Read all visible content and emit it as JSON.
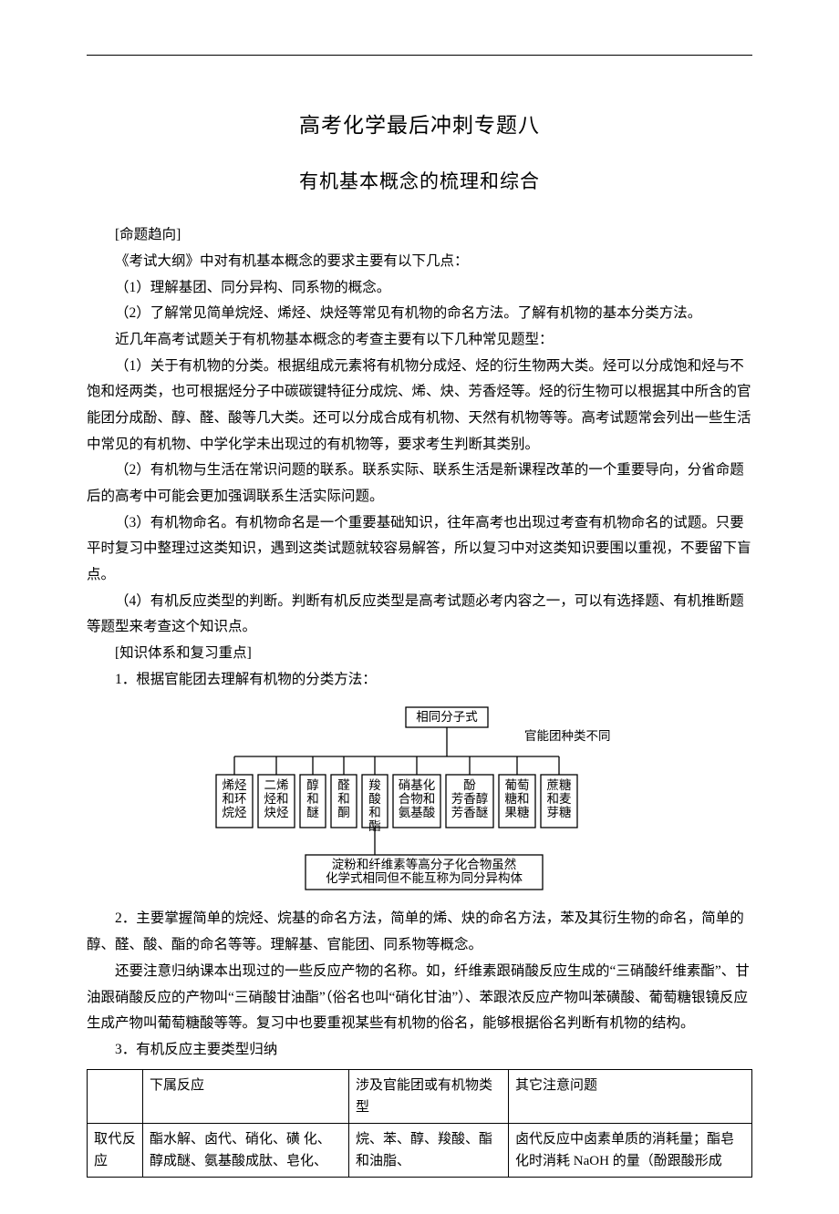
{
  "title": "高考化学最后冲刺专题八",
  "subtitle": "有机基本概念的梳理和综合",
  "sections": {
    "s1_head": "[命题趋向]",
    "s1_p1": "《考试大纲》中对有机基本概念的要求主要有以下几点：",
    "s1_p2": "（1）理解基团、同分异构、同系物的概念。",
    "s1_p3": "（2）了解常见简单烷烃、烯烃、炔烃等常见有机物的命名方法。了解有机物的基本分类方法。",
    "s1_p4": "近几年高考试题关于有机物基本概念的考查主要有以下几种常见题型：",
    "s1_p5": "（1）关于有机物的分类。根据组成元素将有机物分成烃、烃的衍生物两大类。烃可以分成饱和烃与不饱和烃两类，也可根据烃分子中碳碳键特征分成烷、烯、炔、芳香烃等。烃的衍生物可以根据其中所含的官能团分成酚、醇、醛、酸等几大类。还可以分成合成有机物、天然有机物等等。高考试题常会列出一些生活中常见的有机物、中学化学未出现过的有机物等，要求考生判断其类别。",
    "s1_p6": "（2）有机物与生活在常识问题的联系。联系实际、联系生活是新课程改革的一个重要导向，分省命题后的高考中可能会更加强调联系生活实际问题。",
    "s1_p7": "（3）有机物命名。有机物命名是一个重要基础知识，往年高考也出现过考查有机物命名的试题。只要平时复习中整理过这类知识，遇到这类试题就较容易解答，所以复习中对这类知识要围以重视，不要留下盲点。",
    "s1_p8": "（4）有机反应类型的判断。判断有机反应类型是高考试题必考内容之一，可以有选择题、有机推断题等题型来考查这个知识点。",
    "s2_head": "[知识体系和复习重点]",
    "s2_p1": "1．根据官能团去理解有机物的分类方法：",
    "s2_p2": "2．主要掌握简单的烷烃、烷基的命名方法，简单的烯、炔的命名方法，苯及其衍生物的命名，简单的醇、醛、酸、酯的命名等等。理解基、官能团、同系物等概念。",
    "s2_p3": "还要注意归纳课本出现过的一些反应产物的名称。如，纤维素跟硝酸反应生成的“三硝酸纤维素酯”、甘油跟硝酸反应的产物叫“三硝酸甘油酯”（俗名也叫“硝化甘油”）、苯跟浓反应产物叫苯磺酸、葡萄糖银镜反应生成产物叫葡萄糖酸等等。复习中也要重视某些有机物的俗名，能够根据俗名判断有机物的结构。",
    "s2_p4": "3．有机反应主要类型归纳"
  },
  "diagram": {
    "top": "相同分子式",
    "side": "官能团种类不同",
    "boxes": [
      "烯烃\n和环\n烷烃",
      "二烯\n烃和\n炔烃",
      "醇\n和\n醚",
      "醛\n和\n酮",
      "羧\n酸\n和\n酯",
      "硝基化\n合物和\n氨基酸",
      "酚\n芳香醇\n芳香醚",
      "葡萄\n糖和\n果糖",
      "蔗糖\n和麦\n芽糖"
    ],
    "note": "淀粉和纤维素等高分子化合物虽然\n化学式相同但不能互称为同分异构体",
    "stroke": "#000000",
    "box_bg": "#ffffff",
    "font_size": 13.5
  },
  "table": {
    "header": [
      "",
      "下属反应",
      "涉及官能团或有机物类型",
      "其它注意问题"
    ],
    "row1": [
      "取代反应",
      "酯水解、卤代、硝化、磺 化、醇成醚、氨基酸成肽、皂化、",
      "烷、苯、醇、羧酸、酯和油脂、",
      "卤代反应中卤素单质的消耗量；酯皂化时消耗 NaOH 的量（酚跟酸形成"
    ]
  }
}
